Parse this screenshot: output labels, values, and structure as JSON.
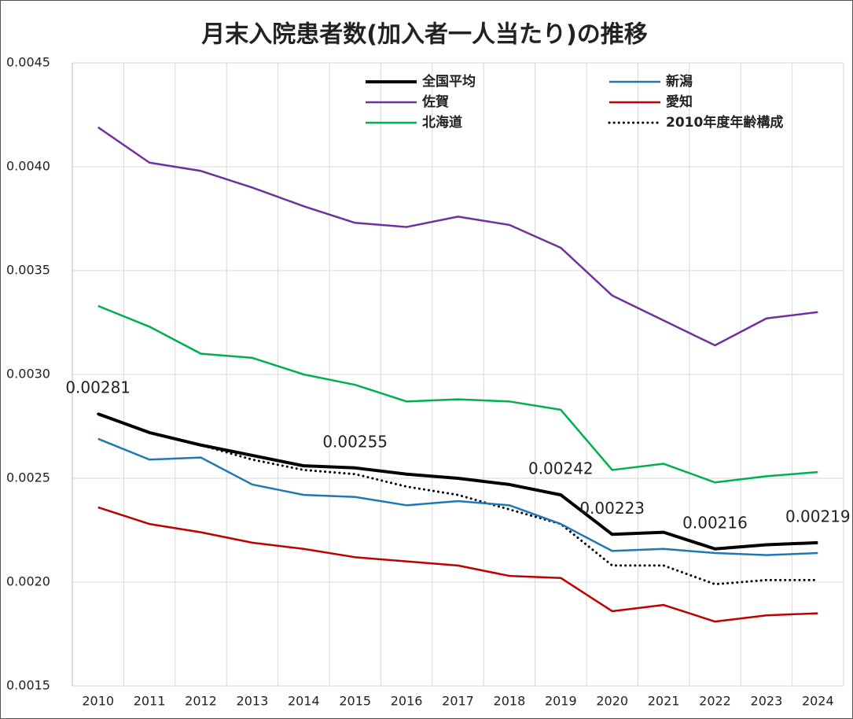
{
  "chart_data": {
    "type": "line",
    "title": "月末入院患者数(加入者一人当たり)の推移",
    "categories": [
      "2010",
      "2011",
      "2012",
      "2013",
      "2014",
      "2015",
      "2016",
      "2017",
      "2018",
      "2019",
      "2020",
      "2021",
      "2022",
      "2023",
      "2024"
    ],
    "ylim": [
      0.0015,
      0.0045
    ],
    "yticks": [
      0.0015,
      {
        "value": 0.002,
        "label": "0.0020"
      },
      0.0025,
      {
        "value": 0.003,
        "label": "0.0030"
      },
      0.0035,
      {
        "value": 0.004,
        "label": "0.0040"
      },
      0.0045
    ],
    "grid": true,
    "series": [
      {
        "name": "全国平均",
        "color": "#000000",
        "line_width": 4,
        "line_style": "solid",
        "values": [
          0.00281,
          0.00272,
          0.00266,
          0.00261,
          0.00256,
          0.00255,
          0.00252,
          0.0025,
          0.00247,
          0.00242,
          0.00223,
          0.00224,
          0.00216,
          0.00218,
          0.00219
        ],
        "value_labels": [
          "0.00281",
          null,
          null,
          null,
          null,
          "0.00255",
          null,
          null,
          null,
          "0.00242",
          "0.00223",
          null,
          "0.00216",
          null,
          "0.00219"
        ]
      },
      {
        "name": "新潟",
        "color": "#1f77b4",
        "line_width": 2.5,
        "line_style": "solid",
        "values": [
          0.00269,
          0.00259,
          0.0026,
          0.00247,
          0.00242,
          0.00241,
          0.00237,
          0.00239,
          0.00237,
          0.00228,
          0.00215,
          0.00216,
          0.00214,
          0.00213,
          0.00214
        ]
      },
      {
        "name": "佐賀",
        "color": "#7030a0",
        "line_width": 2.5,
        "line_style": "solid",
        "values": [
          0.00419,
          0.00402,
          0.00398,
          0.0039,
          0.00381,
          0.00373,
          0.00371,
          0.00376,
          0.00372,
          0.00361,
          0.00338,
          0.00326,
          0.00314,
          0.00327,
          0.0033
        ]
      },
      {
        "name": "愛知",
        "color": "#c00000",
        "line_width": 2.5,
        "line_style": "solid",
        "values": [
          0.00236,
          0.00228,
          0.00224,
          0.00219,
          0.00216,
          0.00212,
          0.0021,
          0.00208,
          0.00203,
          0.00202,
          0.00186,
          0.00189,
          0.00181,
          0.00184,
          0.00185
        ]
      },
      {
        "name": "北海道",
        "color": "#00b050",
        "line_width": 2.5,
        "line_style": "solid",
        "values": [
          0.00333,
          0.00323,
          0.0031,
          0.00308,
          0.003,
          0.00295,
          0.00287,
          0.00288,
          0.00287,
          0.00283,
          0.00254,
          0.00257,
          0.00248,
          0.00251,
          0.00253
        ]
      },
      {
        "name": "2010年度年齢構成",
        "color": "#000000",
        "line_width": 3,
        "line_style": "dotted",
        "values": [
          0.00281,
          0.00272,
          0.00266,
          0.00259,
          0.00254,
          0.00252,
          0.00246,
          0.00242,
          0.00235,
          0.00228,
          0.00208,
          0.00208,
          0.00199,
          0.00201,
          0.00201
        ]
      }
    ]
  }
}
